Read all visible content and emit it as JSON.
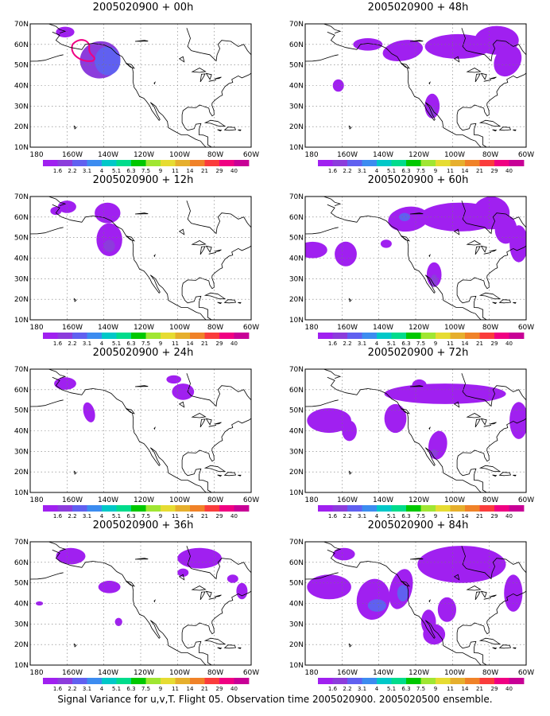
{
  "figure": {
    "caption": "Signal Variance for u,v,T. Flight 05. Observation time 2005020900. 2005020500 ensemble."
  },
  "colors": [
    "#a020f0",
    "#8c3cdc",
    "#6060f0",
    "#3c8cf0",
    "#00c8c8",
    "#00dc8c",
    "#00c800",
    "#a0e632",
    "#e6dc32",
    "#e6af2d",
    "#f08228",
    "#fa3c3c",
    "#f00082",
    "#c80096"
  ],
  "chart_data": [
    {
      "type": "heatmap",
      "title": "2005020900 + 00h",
      "xticks": [
        "180",
        "160W",
        "140W",
        "120W",
        "100W",
        "80W",
        "60W"
      ],
      "yticks": [
        "10N",
        "20N",
        "30N",
        "40N",
        "50N",
        "60N",
        "70N"
      ],
      "xlim": [
        -180,
        -60
      ],
      "ylim": [
        10,
        70
      ],
      "grid": true,
      "colorbar": [
        "1.6",
        "2.2",
        "3.1",
        "4",
        "5.1",
        "6.3",
        "7.5",
        "9",
        "11",
        "14",
        "21",
        "29",
        "40"
      ]
    },
    {
      "type": "heatmap",
      "title": "2005020900 + 48h",
      "xticks": [
        "180",
        "160W",
        "140W",
        "120W",
        "100W",
        "80W",
        "60W"
      ],
      "yticks": [
        "10N",
        "20N",
        "30N",
        "40N",
        "50N",
        "60N",
        "70N"
      ],
      "xlim": [
        -180,
        -60
      ],
      "ylim": [
        10,
        70
      ],
      "grid": true,
      "colorbar": [
        "1.6",
        "2.2",
        "3.1",
        "4",
        "5.1",
        "6.3",
        "7.5",
        "9",
        "11",
        "14",
        "21",
        "29",
        "40"
      ]
    },
    {
      "type": "heatmap",
      "title": "2005020900 + 12h",
      "xticks": [
        "180",
        "160W",
        "140W",
        "120W",
        "100W",
        "80W",
        "60W"
      ],
      "yticks": [
        "10N",
        "20N",
        "30N",
        "40N",
        "50N",
        "60N",
        "70N"
      ],
      "xlim": [
        -180,
        -60
      ],
      "ylim": [
        10,
        70
      ],
      "grid": true,
      "colorbar": [
        "1.6",
        "2.2",
        "3.1",
        "4",
        "5.1",
        "6.3",
        "7.5",
        "9",
        "11",
        "14",
        "21",
        "29",
        "40"
      ]
    },
    {
      "type": "heatmap",
      "title": "2005020900 + 60h",
      "xticks": [
        "180",
        "160W",
        "140W",
        "120W",
        "100W",
        "80W",
        "60W"
      ],
      "yticks": [
        "10N",
        "20N",
        "30N",
        "40N",
        "50N",
        "60N",
        "70N"
      ],
      "xlim": [
        -180,
        -60
      ],
      "ylim": [
        10,
        70
      ],
      "grid": true,
      "colorbar": [
        "1.6",
        "2.2",
        "3.1",
        "4",
        "5.1",
        "6.3",
        "7.5",
        "9",
        "11",
        "14",
        "21",
        "29",
        "40"
      ]
    },
    {
      "type": "heatmap",
      "title": "2005020900 + 24h",
      "xticks": [
        "180",
        "160W",
        "140W",
        "120W",
        "100W",
        "80W",
        "60W"
      ],
      "yticks": [
        "10N",
        "20N",
        "30N",
        "40N",
        "50N",
        "60N",
        "70N"
      ],
      "xlim": [
        -180,
        -60
      ],
      "ylim": [
        10,
        70
      ],
      "grid": true,
      "colorbar": [
        "1.6",
        "2.2",
        "3.1",
        "4",
        "5.1",
        "6.3",
        "7.5",
        "9",
        "11",
        "14",
        "21",
        "29",
        "40"
      ]
    },
    {
      "type": "heatmap",
      "title": "2005020900 + 72h",
      "xticks": [
        "180",
        "160W",
        "140W",
        "120W",
        "100W",
        "80W",
        "60W"
      ],
      "yticks": [
        "10N",
        "20N",
        "30N",
        "40N",
        "50N",
        "60N",
        "70N"
      ],
      "xlim": [
        -180,
        -60
      ],
      "ylim": [
        10,
        70
      ],
      "grid": true,
      "colorbar": [
        "1.6",
        "2.2",
        "3.1",
        "4",
        "5.1",
        "6.3",
        "7.5",
        "9",
        "11",
        "14",
        "21",
        "29",
        "40"
      ]
    },
    {
      "type": "heatmap",
      "title": "2005020900 + 36h",
      "xticks": [
        "180",
        "160W",
        "140W",
        "120W",
        "100W",
        "80W",
        "60W"
      ],
      "yticks": [
        "10N",
        "20N",
        "30N",
        "40N",
        "50N",
        "60N",
        "70N"
      ],
      "xlim": [
        -180,
        -60
      ],
      "ylim": [
        10,
        70
      ],
      "grid": true,
      "colorbar": [
        "1.6",
        "2.2",
        "3.1",
        "4",
        "5.1",
        "6.3",
        "7.5",
        "9",
        "11",
        "14",
        "21",
        "29",
        "40"
      ]
    },
    {
      "type": "heatmap",
      "title": "2005020900 + 84h",
      "xticks": [
        "180",
        "160W",
        "140W",
        "120W",
        "100W",
        "80W",
        "60W"
      ],
      "yticks": [
        "10N",
        "20N",
        "30N",
        "40N",
        "50N",
        "60N",
        "70N"
      ],
      "xlim": [
        -180,
        -60
      ],
      "ylim": [
        10,
        70
      ],
      "grid": true,
      "colorbar": [
        "1.6",
        "2.2",
        "3.1",
        "4",
        "5.1",
        "6.3",
        "7.5",
        "9",
        "11",
        "14",
        "21",
        "29",
        "40"
      ]
    }
  ]
}
